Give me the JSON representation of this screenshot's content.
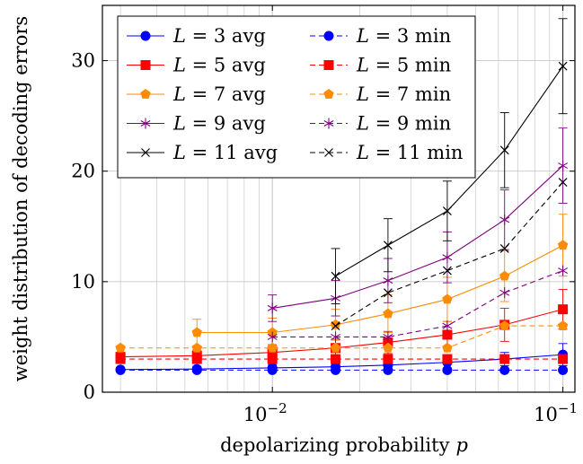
{
  "chart_data": {
    "type": "line",
    "title": "",
    "xlabel": "depolarizing probability",
    "xlabel_symbol": "p",
    "ylabel": "weight distribution of decoding errors",
    "xscale": "log",
    "xlim": [
      0.0026,
      0.11
    ],
    "ylim": [
      0,
      35
    ],
    "grid": true,
    "legend_position": "top-left",
    "x_ticks": [
      {
        "value": 0.01,
        "label": "10",
        "exp": "−2"
      },
      {
        "value": 0.1,
        "label": "10",
        "exp": "−1"
      }
    ],
    "y_ticks": [
      {
        "value": 0,
        "label": "0"
      },
      {
        "value": 10,
        "label": "10"
      },
      {
        "value": 20,
        "label": "20"
      },
      {
        "value": 30,
        "label": "30"
      }
    ],
    "series": [
      {
        "name": "L = 3 avg",
        "L": "3",
        "kind": "avg",
        "color": "#0000ff",
        "marker": "circle",
        "dashed": false,
        "x": [
          0.003,
          0.0055,
          0.01,
          0.0165,
          0.025,
          0.04,
          0.063,
          0.1
        ],
        "y": [
          2.05,
          2.1,
          2.2,
          2.3,
          2.45,
          2.7,
          3.0,
          3.4
        ],
        "err": [
          0.2,
          0.25,
          0.3,
          0.35,
          0.4,
          0.5,
          0.6,
          1.0
        ]
      },
      {
        "name": "L = 3 min",
        "L": "3",
        "kind": "min",
        "color": "#0000ff",
        "marker": "circle",
        "dashed": true,
        "x": [
          0.003,
          0.0055,
          0.01,
          0.0165,
          0.025,
          0.04,
          0.063,
          0.1
        ],
        "y": [
          2,
          2,
          2,
          2,
          2,
          2,
          2,
          2
        ],
        "err": [
          0,
          0,
          0,
          0,
          0,
          0,
          0,
          0
        ]
      },
      {
        "name": "L = 5 avg",
        "L": "5",
        "kind": "avg",
        "color": "#ff0000",
        "marker": "square",
        "dashed": false,
        "x": [
          0.003,
          0.0055,
          0.01,
          0.0165,
          0.025,
          0.04,
          0.063,
          0.1
        ],
        "y": [
          3.2,
          3.3,
          3.6,
          4.0,
          4.5,
          5.2,
          6.1,
          7.5
        ],
        "err": [
          0.4,
          0.5,
          0.7,
          0.8,
          1.0,
          1.2,
          1.5,
          1.8
        ]
      },
      {
        "name": "L = 5 min",
        "L": "5",
        "kind": "min",
        "color": "#ff0000",
        "marker": "square",
        "dashed": true,
        "x": [
          0.003,
          0.0055,
          0.01,
          0.0165,
          0.025,
          0.04,
          0.063,
          0.1
        ],
        "y": [
          3,
          3,
          3,
          3,
          3,
          3,
          3,
          3
        ],
        "err": [
          0,
          0,
          0,
          0,
          0,
          0,
          0,
          0
        ]
      },
      {
        "name": "L = 7 avg",
        "L": "7",
        "kind": "avg",
        "color": "#ff8c00",
        "marker": "pentagon",
        "dashed": false,
        "x": [
          0.0055,
          0.01,
          0.0165,
          0.025,
          0.04,
          0.063,
          0.1
        ],
        "y": [
          5.4,
          5.4,
          6.1,
          7.1,
          8.4,
          10.5,
          13.3
        ],
        "err": [
          1.2,
          1.3,
          1.4,
          1.7,
          2.0,
          2.3,
          2.8
        ]
      },
      {
        "name": "L = 7 min",
        "L": "7",
        "kind": "min",
        "color": "#ff8c00",
        "marker": "pentagon",
        "dashed": true,
        "x": [
          0.003,
          0.0055,
          0.01,
          0.0165,
          0.025,
          0.04,
          0.063,
          0.1
        ],
        "y": [
          4,
          4,
          4,
          4,
          4,
          4,
          6,
          6
        ],
        "err": [
          0,
          0,
          0,
          0,
          0,
          0,
          0,
          0
        ]
      },
      {
        "name": "L = 9 avg",
        "L": "9",
        "kind": "avg",
        "color": "#800080",
        "marker": "star",
        "dashed": false,
        "x": [
          0.01,
          0.0165,
          0.025,
          0.04,
          0.063,
          0.1
        ],
        "y": [
          7.6,
          8.5,
          10.1,
          12.2,
          15.6,
          20.5
        ],
        "err": [
          1.2,
          1.6,
          2.0,
          2.3,
          2.7,
          3.4
        ]
      },
      {
        "name": "L = 9 min",
        "L": "9",
        "kind": "min",
        "color": "#800080",
        "marker": "star",
        "dashed": true,
        "x": [
          0.01,
          0.0165,
          0.025,
          0.04,
          0.063,
          0.1
        ],
        "y": [
          5,
          5,
          5,
          6,
          9,
          11
        ],
        "err": [
          0,
          0,
          0,
          0,
          0,
          0
        ]
      },
      {
        "name": "L = 11 avg",
        "L": "11",
        "kind": "avg",
        "color": "#000000",
        "marker": "cross",
        "dashed": false,
        "x": [
          0.0165,
          0.025,
          0.04,
          0.063,
          0.1
        ],
        "y": [
          10.5,
          13.3,
          16.4,
          21.9,
          29.5
        ],
        "err": [
          2.5,
          2.4,
          2.7,
          3.4,
          4.3
        ]
      },
      {
        "name": "L = 11 min",
        "L": "11",
        "kind": "min",
        "color": "#000000",
        "marker": "cross",
        "dashed": true,
        "x": [
          0.0165,
          0.025,
          0.04,
          0.063,
          0.1
        ],
        "y": [
          6,
          9,
          11,
          13,
          19
        ],
        "err": [
          0,
          0,
          0,
          0,
          0
        ]
      }
    ]
  }
}
